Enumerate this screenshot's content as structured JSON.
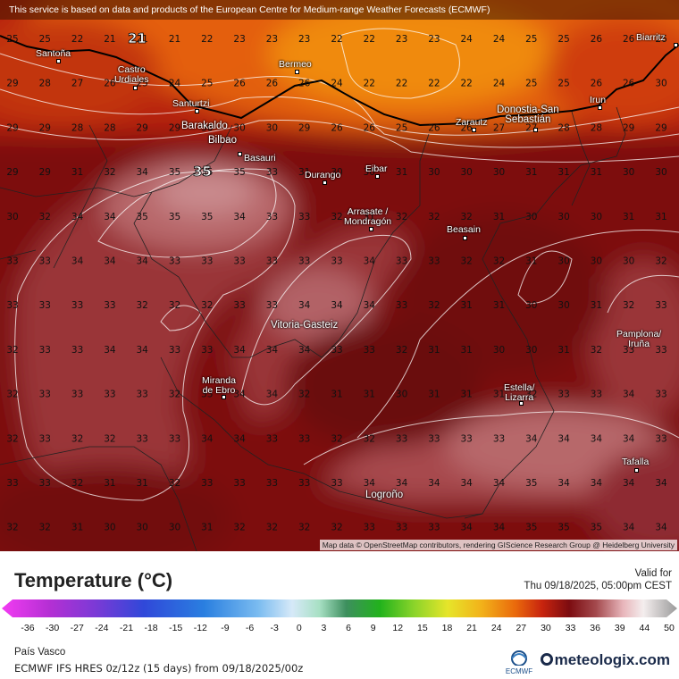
{
  "banner": "This service is based on data and products of the European Centre for Medium-range Weather Forecasts (ECMWF)",
  "attribution": "Map data © OpenStreetMap contributors, rendering GIScience Research Group @ Heidelberg University",
  "legend": {
    "title": "Temperature (°C)",
    "valid_label": "Valid for",
    "valid_time": "Thu 09/18/2025, 05:00pm CEST",
    "ticks": [
      "-36",
      "-30",
      "-27",
      "-24",
      "-21",
      "-18",
      "-15",
      "-12",
      "-9",
      "-6",
      "-3",
      "0",
      "3",
      "6",
      "9",
      "12",
      "15",
      "18",
      "21",
      "24",
      "27",
      "30",
      "33",
      "36",
      "39",
      "44",
      "50"
    ],
    "region": "País Vasco",
    "model": "ECMWF IFS HRES 0z/12z (15 days) from 09/18/2025/00z",
    "brand": "meteologix.com",
    "ecmwf_logo": "ECMWF"
  },
  "cities": [
    {
      "name": "Santoña"
    },
    {
      "name": "Castro\nUrdiales"
    },
    {
      "name": "Bermeo"
    },
    {
      "name": "Santurtzi"
    },
    {
      "name": "Barakaldo"
    },
    {
      "name": "Bilbao"
    },
    {
      "name": "Basauri"
    },
    {
      "name": "Durango"
    },
    {
      "name": "Eibar"
    },
    {
      "name": "Zarautz"
    },
    {
      "name": "Donostia-San\nSebastián"
    },
    {
      "name": "Irun"
    },
    {
      "name": "Biarritz"
    },
    {
      "name": "Arrasate /\nMondragón"
    },
    {
      "name": "Beasain"
    },
    {
      "name": "Vitoria-Gasteiz"
    },
    {
      "name": "Miranda\nde Ebro"
    },
    {
      "name": "Estella/\nLizarra"
    },
    {
      "name": "Pamplona/\nIruña"
    },
    {
      "name": "Tafalla"
    },
    {
      "name": "Logroño"
    }
  ],
  "grid_values": [
    [
      "25",
      "25",
      "22",
      "21",
      "21",
      "21",
      "22",
      "23",
      "23",
      "23",
      "22",
      "22",
      "23",
      "23",
      "24",
      "24",
      "25",
      "25",
      "26",
      "26",
      "26"
    ],
    [
      "29",
      "28",
      "27",
      "26",
      "25",
      "24",
      "25",
      "26",
      "26",
      "26",
      "24",
      "22",
      "22",
      "22",
      "22",
      "24",
      "25",
      "25",
      "26",
      "26",
      "30"
    ],
    [
      "29",
      "29",
      "28",
      "28",
      "29",
      "29",
      "30",
      "30",
      "30",
      "29",
      "26",
      "26",
      "25",
      "26",
      "26",
      "27",
      "27",
      "28",
      "28",
      "29",
      "29"
    ],
    [
      "29",
      "29",
      "31",
      "32",
      "34",
      "35",
      "35",
      "35",
      "33",
      "31",
      "30",
      "30",
      "31",
      "30",
      "30",
      "30",
      "31",
      "31",
      "31",
      "30",
      "30"
    ],
    [
      "30",
      "32",
      "34",
      "34",
      "35",
      "35",
      "35",
      "34",
      "33",
      "33",
      "32",
      "31",
      "32",
      "32",
      "32",
      "31",
      "30",
      "30",
      "30",
      "31",
      "31"
    ],
    [
      "33",
      "33",
      "34",
      "34",
      "34",
      "33",
      "33",
      "33",
      "33",
      "33",
      "33",
      "34",
      "33",
      "33",
      "32",
      "32",
      "31",
      "30",
      "30",
      "30",
      "32"
    ],
    [
      "33",
      "33",
      "33",
      "33",
      "32",
      "32",
      "32",
      "33",
      "33",
      "34",
      "34",
      "34",
      "33",
      "32",
      "31",
      "31",
      "30",
      "30",
      "31",
      "32",
      "33"
    ],
    [
      "32",
      "33",
      "33",
      "34",
      "34",
      "33",
      "33",
      "34",
      "34",
      "34",
      "33",
      "33",
      "32",
      "31",
      "31",
      "30",
      "30",
      "31",
      "32",
      "33",
      "33"
    ],
    [
      "32",
      "33",
      "33",
      "33",
      "33",
      "32",
      "33",
      "34",
      "34",
      "32",
      "31",
      "31",
      "30",
      "31",
      "31",
      "31",
      "32",
      "33",
      "33",
      "34",
      "33"
    ],
    [
      "32",
      "33",
      "32",
      "32",
      "33",
      "33",
      "34",
      "34",
      "33",
      "33",
      "32",
      "32",
      "33",
      "33",
      "33",
      "33",
      "34",
      "34",
      "34",
      "34",
      "33"
    ],
    [
      "33",
      "33",
      "32",
      "31",
      "31",
      "32",
      "33",
      "33",
      "33",
      "33",
      "33",
      "34",
      "34",
      "34",
      "34",
      "34",
      "35",
      "34",
      "34",
      "34",
      "34"
    ],
    [
      "32",
      "32",
      "31",
      "30",
      "30",
      "30",
      "31",
      "32",
      "32",
      "32",
      "32",
      "33",
      "33",
      "33",
      "34",
      "34",
      "35",
      "35",
      "35",
      "34",
      "34"
    ]
  ],
  "peak_labels": [
    {
      "value": "21"
    },
    {
      "value": "35"
    }
  ]
}
